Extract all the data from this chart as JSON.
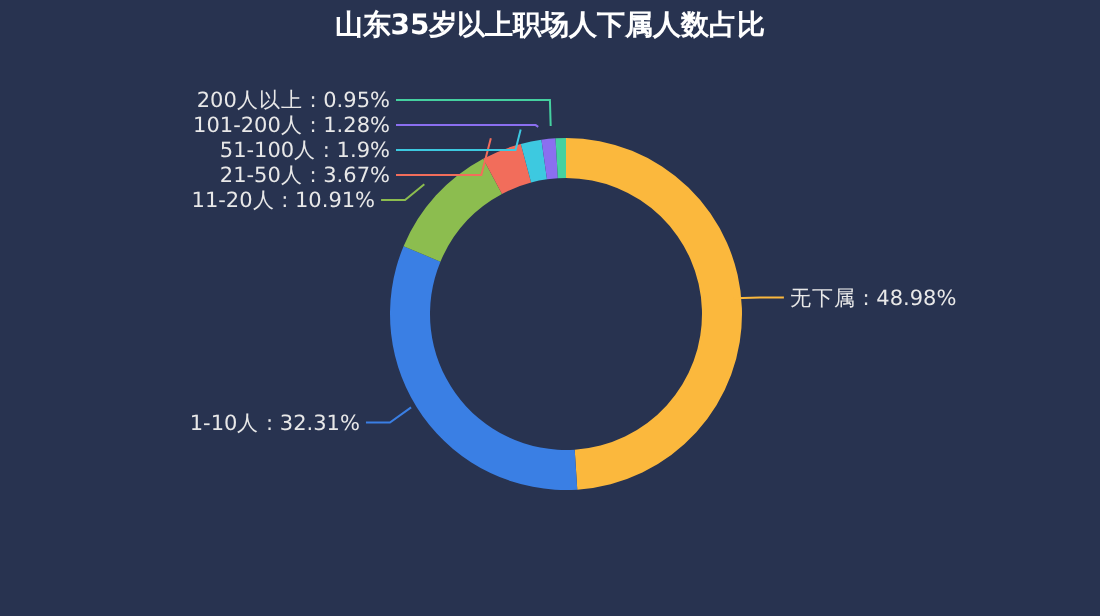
{
  "chart_data": {
    "type": "donut",
    "title": "山东35岁以上职场人下属人数占比",
    "categories": [
      "无下属",
      "1-10人",
      "11-20人",
      "21-50人",
      "51-100人",
      "101-200人",
      "200人以上"
    ],
    "values": [
      48.98,
      32.31,
      10.91,
      3.67,
      1.9,
      1.28,
      0.95
    ],
    "colors": [
      "#fbb83d",
      "#3a7fe4",
      "#8cbd4f",
      "#f26d5b",
      "#3dc9e0",
      "#8b6ff0",
      "#45d1a0"
    ],
    "value_labels": [
      "48.98%",
      "32.31%",
      "10.91%",
      "3.67%",
      "1.9%",
      "1.28%",
      "0.95%"
    ]
  }
}
